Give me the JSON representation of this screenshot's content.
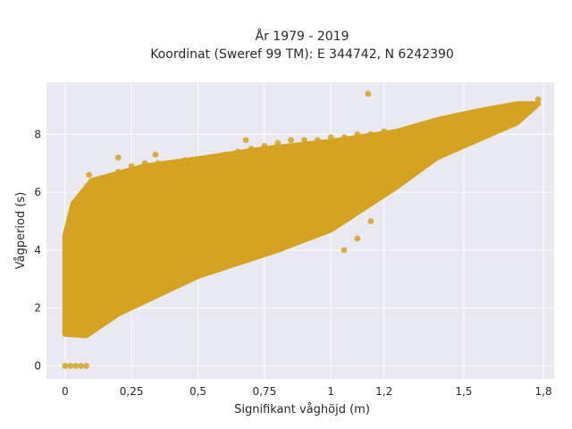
{
  "chart_data": {
    "type": "scatter",
    "title_line1": "År 1979 - 2019",
    "title_line2": "Koordinat (Sweref 99 TM): E 344742, N 6242390",
    "xlabel": "Signifikant våghöjd (m)",
    "ylabel": "Vågperiod (s)",
    "xlim": [
      -0.07,
      1.84
    ],
    "ylim": [
      -0.45,
      9.8
    ],
    "x_ticks": [
      0,
      0.25,
      0.5,
      0.75,
      1,
      1.2,
      1.5,
      1.8
    ],
    "x_tick_labels": [
      "0",
      "0,25",
      "0,5",
      "0,75",
      "1",
      "1,2",
      "1,5",
      "1,8"
    ],
    "y_ticks": [
      0,
      2,
      4,
      6,
      8
    ],
    "y_tick_labels": [
      "0",
      "2",
      "4",
      "6",
      "8"
    ],
    "grid": true,
    "legend": "none",
    "colors": {
      "point": "#D4A321",
      "plot_background": "#E9E9F1",
      "grid": "#FFFFFF",
      "text": "#2A2A2A"
    },
    "series": [
      {
        "points": [
          [
            0.0,
            0.0
          ],
          [
            0.02,
            0.0
          ],
          [
            0.04,
            0.0
          ],
          [
            0.06,
            0.0
          ],
          [
            0.08,
            0.0
          ],
          [
            0.0,
            1.2
          ],
          [
            0.02,
            1.8
          ],
          [
            0.03,
            2.5
          ],
          [
            0.05,
            3.2
          ],
          [
            0.06,
            4.2
          ],
          [
            0.07,
            5.0
          ],
          [
            0.08,
            5.8
          ],
          [
            0.09,
            6.6
          ],
          [
            0.05,
            1.4
          ],
          [
            0.08,
            1.2
          ],
          [
            0.12,
            1.4
          ],
          [
            0.15,
            1.6
          ],
          [
            0.2,
            1.9
          ],
          [
            0.25,
            2.1
          ],
          [
            0.3,
            2.4
          ],
          [
            0.35,
            2.6
          ],
          [
            0.4,
            2.9
          ],
          [
            0.45,
            3.1
          ],
          [
            0.5,
            3.3
          ],
          [
            0.55,
            3.5
          ],
          [
            0.6,
            3.7
          ],
          [
            0.65,
            3.8
          ],
          [
            0.7,
            4.0
          ],
          [
            0.75,
            4.2
          ],
          [
            0.8,
            4.4
          ],
          [
            0.85,
            4.6
          ],
          [
            0.9,
            4.8
          ],
          [
            0.95,
            4.9
          ],
          [
            1.0,
            5.1
          ],
          [
            1.05,
            5.3
          ],
          [
            1.1,
            5.5
          ],
          [
            0.1,
            6.3
          ],
          [
            0.15,
            6.5
          ],
          [
            0.2,
            6.7
          ],
          [
            0.25,
            6.9
          ],
          [
            0.3,
            7.0
          ],
          [
            0.35,
            7.0
          ],
          [
            0.4,
            7.0
          ],
          [
            0.45,
            7.1
          ],
          [
            0.5,
            7.1
          ],
          [
            0.55,
            7.2
          ],
          [
            0.6,
            7.3
          ],
          [
            0.65,
            7.4
          ],
          [
            0.7,
            7.5
          ],
          [
            0.75,
            7.6
          ],
          [
            0.8,
            7.7
          ],
          [
            0.85,
            7.8
          ],
          [
            0.9,
            7.8
          ],
          [
            0.95,
            7.8
          ],
          [
            1.0,
            7.9
          ],
          [
            1.05,
            7.9
          ],
          [
            1.1,
            8.0
          ],
          [
            1.15,
            8.0
          ],
          [
            1.2,
            8.1
          ],
          [
            1.25,
            8.1
          ],
          [
            1.3,
            8.2
          ],
          [
            1.35,
            8.3
          ],
          [
            1.4,
            8.3
          ],
          [
            1.45,
            8.4
          ],
          [
            1.5,
            8.5
          ],
          [
            1.55,
            8.6
          ],
          [
            1.6,
            8.7
          ],
          [
            1.65,
            8.9
          ],
          [
            1.7,
            8.9
          ],
          [
            1.75,
            9.0
          ],
          [
            1.78,
            9.2
          ],
          [
            1.14,
            9.4
          ],
          [
            0.42,
            7.0
          ],
          [
            0.68,
            7.8
          ],
          [
            0.34,
            7.3
          ],
          [
            0.2,
            7.2
          ],
          [
            1.1,
            4.4
          ],
          [
            1.05,
            4.0
          ],
          [
            1.15,
            5.0
          ],
          [
            1.2,
            6.0
          ],
          [
            1.25,
            6.5
          ],
          [
            1.3,
            7.0
          ],
          [
            1.35,
            7.2
          ],
          [
            1.4,
            7.5
          ],
          [
            1.45,
            7.8
          ]
        ]
      }
    ]
  }
}
